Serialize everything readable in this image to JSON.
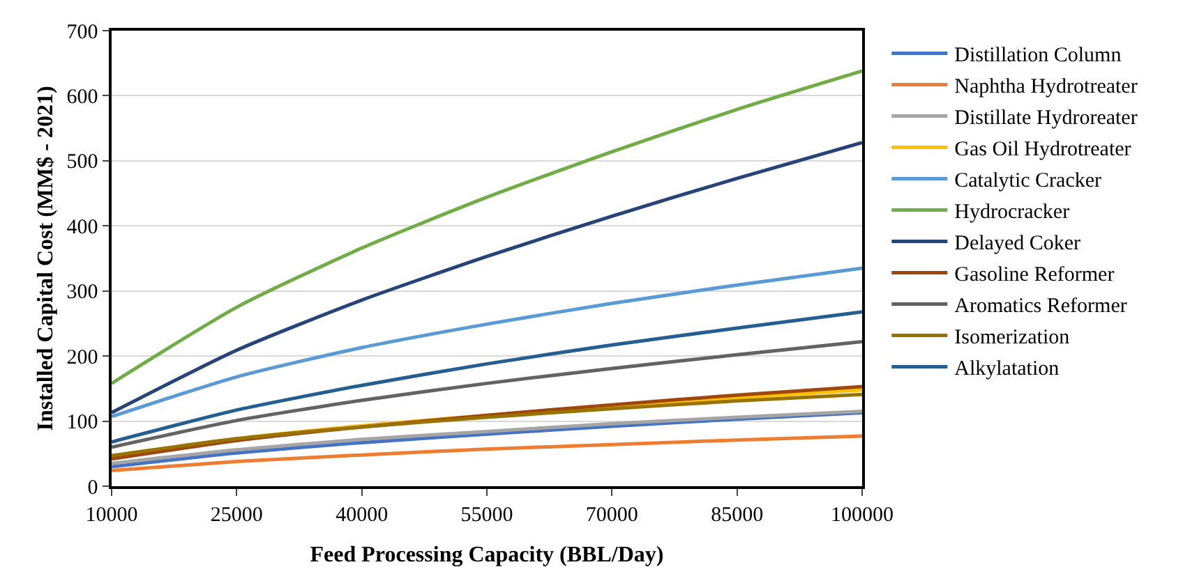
{
  "chart_data": {
    "type": "line",
    "xlabel": "Feed Processing Capacity (BBL/Day)",
    "ylabel": "Installed Capital Cost (MM$ - 2021)",
    "x": [
      10000,
      25000,
      40000,
      55000,
      70000,
      85000,
      100000
    ],
    "xlim": [
      10000,
      100000
    ],
    "xticks": [
      10000,
      25000,
      40000,
      55000,
      70000,
      85000,
      100000
    ],
    "ylim": [
      0,
      700
    ],
    "yticks": [
      0,
      100,
      200,
      300,
      400,
      500,
      600,
      700
    ],
    "grid": "y",
    "legend": "right",
    "marker": "none",
    "line_style": "solid",
    "series": [
      {
        "name": "Distillation Column",
        "color": "#4472c4",
        "values": [
          30,
          51,
          67,
          80,
          92,
          103,
          113
        ]
      },
      {
        "name": "Naphtha Hydrotreater",
        "color": "#ed7d31",
        "values": [
          24,
          38,
          48,
          57,
          64,
          71,
          77
        ]
      },
      {
        "name": "Distillate Hydroreater",
        "color": "#a5a5a5",
        "values": [
          35,
          56,
          72,
          84,
          96,
          106,
          115
        ]
      },
      {
        "name": "Gas Oil Hydrotreater",
        "color": "#ffc000",
        "values": [
          46,
          73,
          93,
          109,
          123,
          136,
          148
        ]
      },
      {
        "name": "Catalytic Cracker",
        "color": "#5b9bd5",
        "values": [
          107,
          168,
          213,
          249,
          281,
          309,
          335
        ]
      },
      {
        "name": "Hydrocracker",
        "color": "#70ad47",
        "values": [
          158,
          275,
          366,
          444,
          514,
          579,
          638
        ]
      },
      {
        "name": "Delayed Coker",
        "color": "#264478",
        "values": [
          113,
          209,
          286,
          353,
          415,
          473,
          528
        ]
      },
      {
        "name": "Gasoline Reformer",
        "color": "#9e480e",
        "values": [
          42,
          70,
          91,
          109,
          125,
          140,
          153
        ]
      },
      {
        "name": "Aromatics Reformer",
        "color": "#636363",
        "values": [
          60,
          101,
          132,
          158,
          181,
          202,
          222
        ]
      },
      {
        "name": "Isomerization",
        "color": "#997300",
        "values": [
          47,
          73,
          91,
          106,
          119,
          131,
          141
        ]
      },
      {
        "name": "Alkylatation",
        "color": "#255e91",
        "values": [
          68,
          117,
          155,
          188,
          217,
          243,
          268
        ]
      }
    ]
  }
}
